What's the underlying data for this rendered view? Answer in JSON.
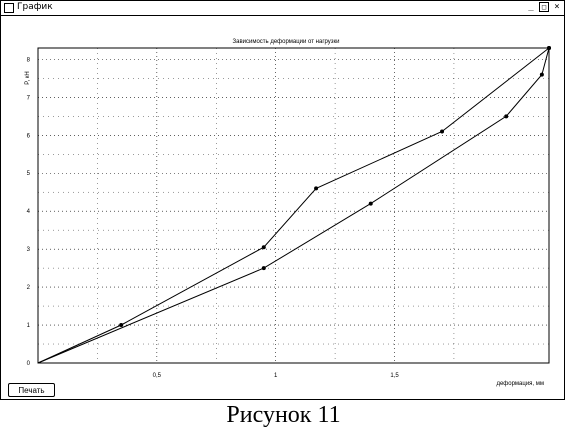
{
  "window": {
    "title": "График",
    "print_button": "Печать",
    "controls": {
      "minimize": "_",
      "maximize": "□",
      "close": "×"
    }
  },
  "caption": "Рисунок 11",
  "chart_data": {
    "type": "line",
    "title": "Зависимость деформации от нагрузки",
    "xlabel": "деформация, мм",
    "ylabel": "P, кН",
    "xlim": [
      0,
      2.15
    ],
    "ylim": [
      0,
      8.3
    ],
    "x_ticks": [
      {
        "value": 0.5,
        "label": "0,5"
      },
      {
        "value": 1,
        "label": "1"
      },
      {
        "value": 1.5,
        "label": "1,5"
      }
    ],
    "y_ticks": [
      {
        "value": 0,
        "label": "0"
      },
      {
        "value": 1,
        "label": "1"
      },
      {
        "value": 2,
        "label": "2"
      },
      {
        "value": 3,
        "label": "3"
      },
      {
        "value": 4,
        "label": "4"
      },
      {
        "value": 5,
        "label": "5"
      },
      {
        "value": 6,
        "label": "6"
      },
      {
        "value": 7,
        "label": "7"
      },
      {
        "value": 8,
        "label": "8"
      }
    ],
    "grid": true,
    "series": [
      {
        "points": [
          [
            0,
            0
          ],
          [
            0.35,
            1.0
          ],
          [
            0.95,
            3.05
          ],
          [
            1.17,
            4.6
          ],
          [
            1.7,
            6.1
          ],
          [
            2.15,
            8.3
          ]
        ],
        "color": "#000000"
      },
      {
        "points": [
          [
            0,
            0
          ],
          [
            0.95,
            2.5
          ],
          [
            1.4,
            4.2
          ],
          [
            1.97,
            6.5
          ],
          [
            2.12,
            7.6
          ],
          [
            2.15,
            8.3
          ]
        ],
        "color": "#000000"
      }
    ]
  }
}
